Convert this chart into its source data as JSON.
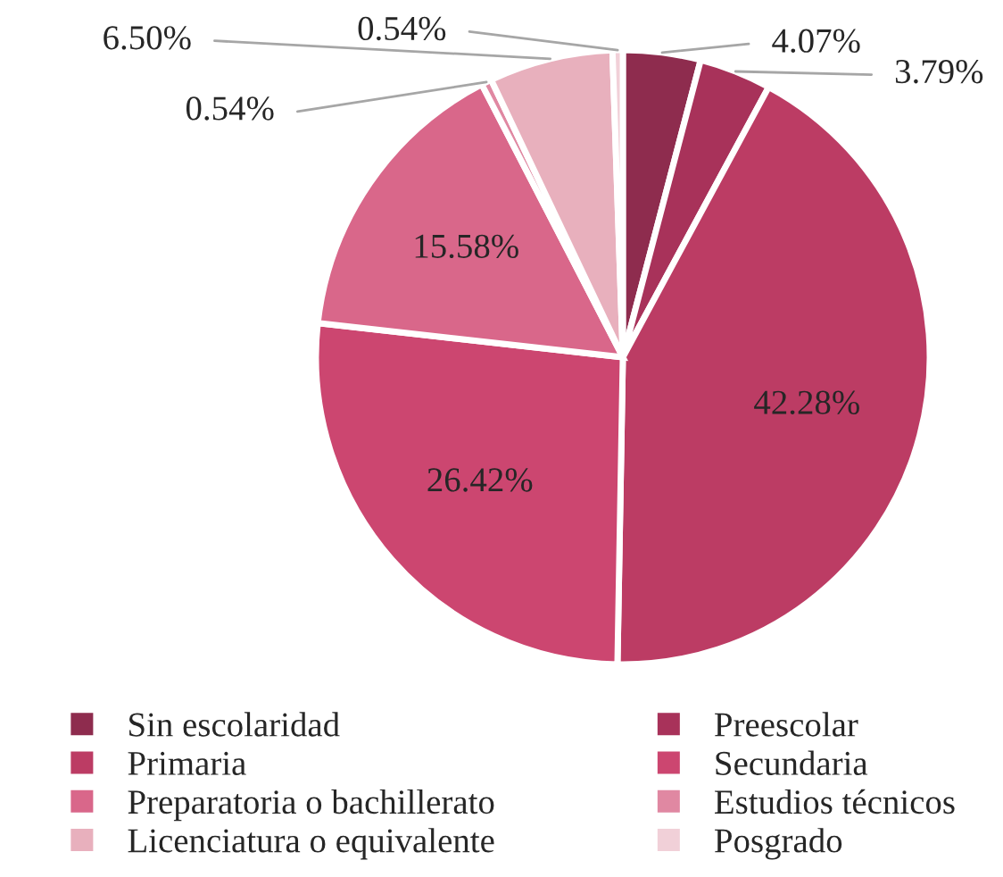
{
  "chart_data": {
    "type": "pie",
    "categories": [
      "Sin escolaridad",
      "Preescolar",
      "Primaria",
      "Secundaria",
      "Preparatoria o bachillerato",
      "Estudios técnicos",
      "Licenciatura o equivalente",
      "Posgrado"
    ],
    "values": [
      4.07,
      3.79,
      42.28,
      26.42,
      15.58,
      0.54,
      6.5,
      0.54
    ],
    "colors": [
      "#8e2c4e",
      "#a8325a",
      "#bc3c64",
      "#cc4670",
      "#d9678a",
      "#e088a2",
      "#e8b0bd",
      "#f1d0d8"
    ],
    "value_labels": [
      "4.07%",
      "3.79%",
      "42.28%",
      "26.42%",
      "15.58%",
      "0.54%",
      "6.50%",
      "0.54%"
    ],
    "legend": "bottom"
  }
}
